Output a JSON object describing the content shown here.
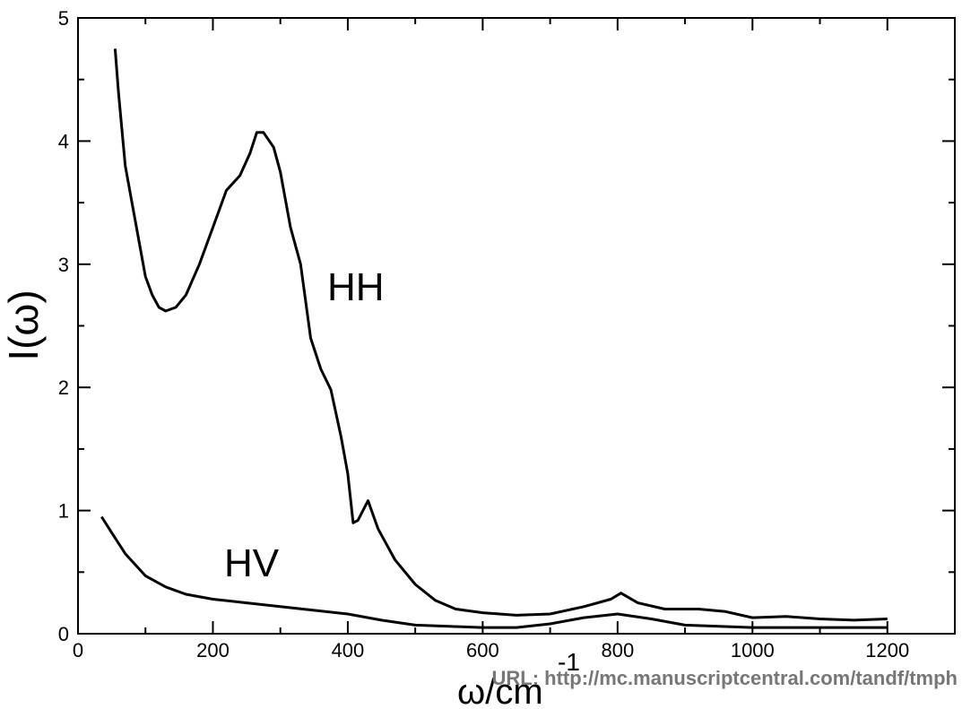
{
  "chart_data": {
    "type": "line",
    "ylabel": "I(ω)",
    "xlabel": "ω/cm",
    "xlabel_exponent": "-1",
    "annotations": [
      "HH",
      "HV"
    ],
    "watermark": "URL: http://mc.manuscriptcentral.com/tandf/tmph",
    "xlim": [
      0,
      1300
    ],
    "ylim": [
      0,
      5
    ],
    "xticks": [
      0,
      200,
      400,
      600,
      800,
      1000,
      1200
    ],
    "yticks": [
      0,
      1,
      2,
      3,
      4,
      5
    ],
    "xminor": [
      100,
      300,
      500,
      700,
      900,
      1100,
      1300
    ],
    "yminor": [
      0.5,
      1.5,
      2.5,
      3.5,
      4.5
    ],
    "series": [
      {
        "name": "HH",
        "color": "#000000",
        "x": [
          55,
          60,
          70,
          80,
          90,
          100,
          110,
          120,
          130,
          145,
          160,
          180,
          200,
          220,
          240,
          255,
          265,
          275,
          290,
          300,
          315,
          330,
          345,
          360,
          375,
          390,
          400,
          408,
          415,
          430,
          445,
          470,
          500,
          530,
          560,
          600,
          650,
          700,
          750,
          790,
          805,
          830,
          870,
          920,
          960,
          1000,
          1050,
          1100,
          1150,
          1200
        ],
        "values": [
          4.75,
          4.4,
          3.8,
          3.5,
          3.2,
          2.9,
          2.75,
          2.65,
          2.62,
          2.65,
          2.75,
          3.0,
          3.3,
          3.6,
          3.72,
          3.9,
          4.07,
          4.07,
          3.95,
          3.75,
          3.3,
          3.0,
          2.4,
          2.15,
          1.98,
          1.6,
          1.3,
          0.9,
          0.92,
          1.08,
          0.85,
          0.6,
          0.4,
          0.27,
          0.2,
          0.17,
          0.15,
          0.16,
          0.22,
          0.28,
          0.33,
          0.25,
          0.2,
          0.2,
          0.18,
          0.13,
          0.14,
          0.12,
          0.11,
          0.12
        ]
      },
      {
        "name": "HV",
        "color": "#000000",
        "x": [
          35,
          50,
          70,
          100,
          130,
          160,
          200,
          250,
          300,
          350,
          400,
          450,
          500,
          550,
          600,
          650,
          700,
          750,
          800,
          850,
          900,
          1000,
          1100,
          1200
        ],
        "values": [
          0.95,
          0.82,
          0.65,
          0.47,
          0.38,
          0.32,
          0.28,
          0.25,
          0.22,
          0.19,
          0.16,
          0.11,
          0.07,
          0.06,
          0.05,
          0.05,
          0.08,
          0.13,
          0.16,
          0.12,
          0.07,
          0.05,
          0.05,
          0.05
        ]
      }
    ]
  }
}
